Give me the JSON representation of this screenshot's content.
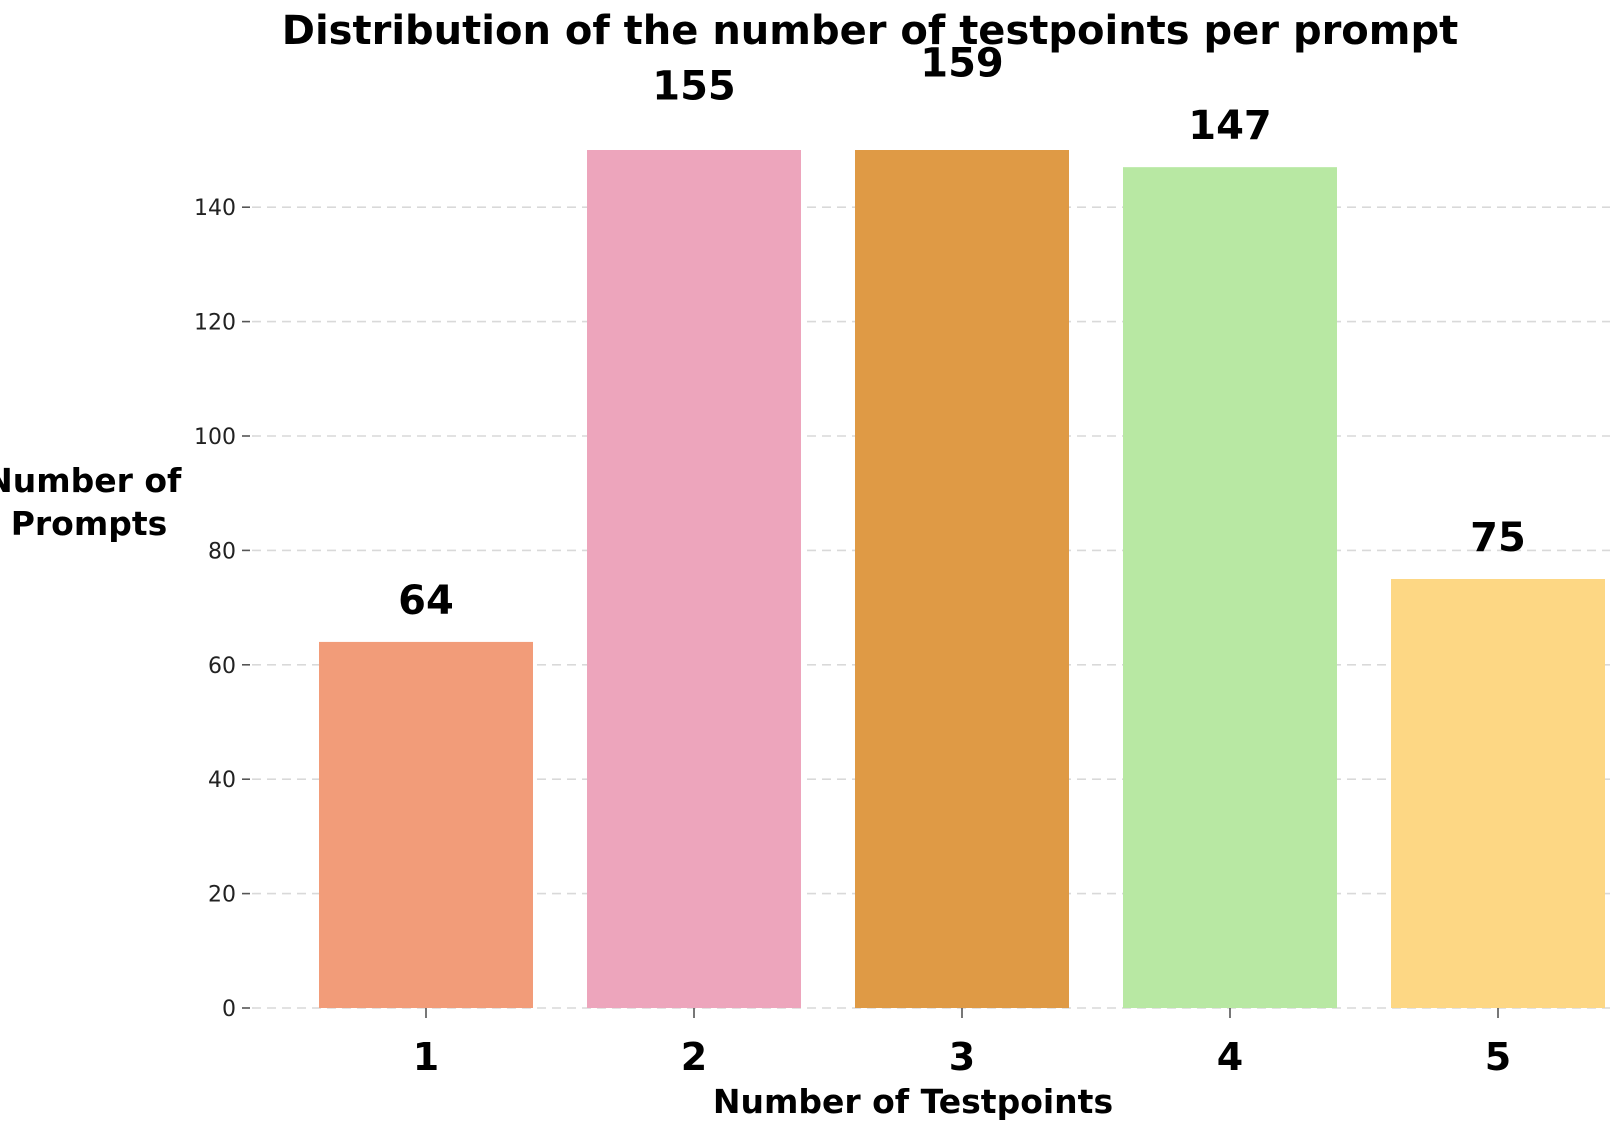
{
  "chart_data": {
    "type": "bar",
    "title": "Distribution of the number of testpoints per prompt",
    "xlabel": "Number of Testpoints",
    "ylabel": [
      "Number of",
      "Prompts"
    ],
    "categories": [
      "1",
      "2",
      "3",
      "4",
      "5"
    ],
    "values": [
      64,
      155,
      159,
      147,
      75
    ],
    "bar_labels": [
      "64",
      "155",
      "159",
      "147",
      "75"
    ],
    "colors": [
      "#F29C79",
      "#EDA5BC",
      "#DF9A45",
      "#B8E8A3",
      "#FDD784"
    ],
    "ylim": [
      0,
      150
    ],
    "yticks": [
      0,
      20,
      40,
      60,
      80,
      100,
      120,
      140
    ],
    "ytick_labels": [
      "0",
      "20",
      "40",
      "60",
      "80",
      "100",
      "120",
      "140"
    ],
    "grid": true,
    "grid_axis": "y",
    "legend": false
  }
}
